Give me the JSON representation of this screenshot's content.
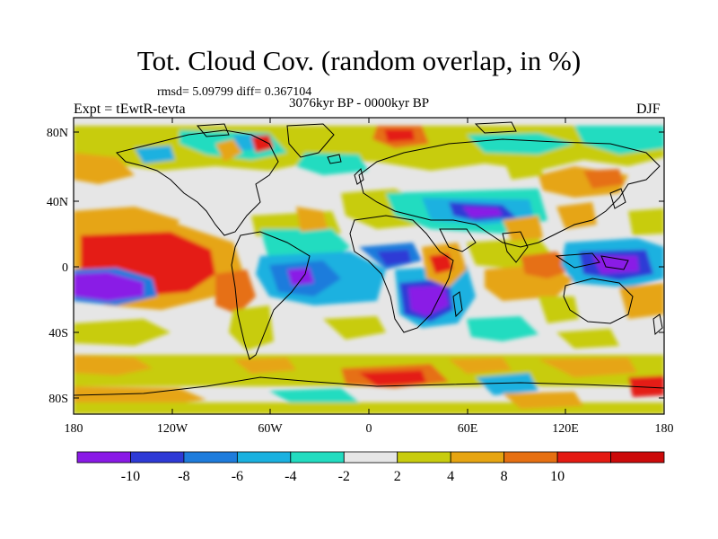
{
  "title": "Tot. Cloud Cov. (random overlap, in %)",
  "stats": "rmsd= 5.09799 diff= 0.367104",
  "period": "3076kyr BP - 0000kyr BP",
  "experiment": "Expt = tEwtR-tevta",
  "season": "DJF",
  "lat_labels": [
    "80N",
    "40N",
    "0",
    "40S",
    "80S"
  ],
  "lon_labels": [
    "180",
    "120W",
    "60W",
    "0",
    "60E",
    "120E",
    "180"
  ],
  "colorbar": {
    "labels": [
      "-10",
      "-8",
      "-6",
      "-4",
      "-2",
      "2",
      "4",
      "8",
      "10"
    ],
    "colors": [
      "#8a1ae6",
      "#2e3ad6",
      "#1e7cdc",
      "#1ab1e0",
      "#22dcc0",
      "#e6e6e6",
      "#c8cc0e",
      "#e6a512",
      "#e67012",
      "#e41a12",
      "#cc0a0a"
    ]
  }
}
